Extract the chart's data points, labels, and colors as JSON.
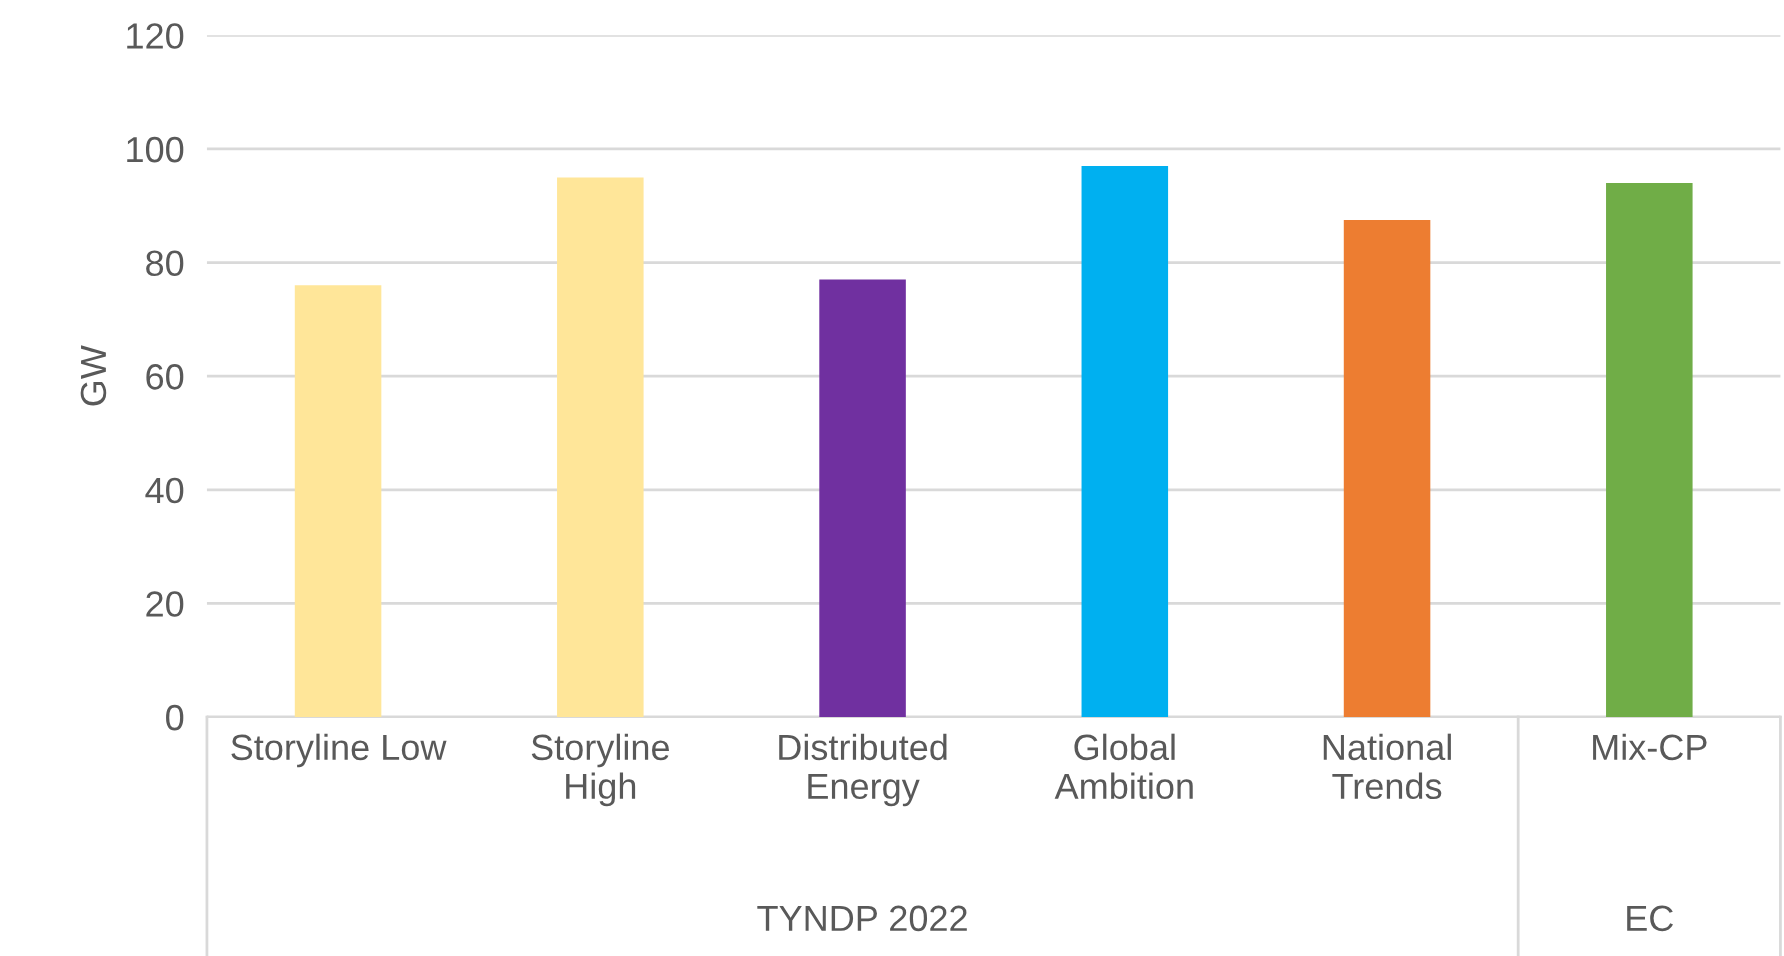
{
  "chart_data": {
    "type": "bar",
    "ylabel": "GW",
    "categories": [
      "Storyline Low",
      "Storyline High",
      "Distributed Energy",
      "Global Ambition",
      "National Trends",
      "Mix-CP"
    ],
    "values": [
      76,
      95,
      77,
      97,
      87.5,
      94
    ],
    "colors": [
      "#ffe699",
      "#ffe699",
      "#7030a0",
      "#00b0f0",
      "#ed7d31",
      "#70ad47"
    ],
    "ylim": [
      0,
      120
    ],
    "yticks": [
      0,
      20,
      40,
      60,
      80,
      100,
      120
    ],
    "grid": "y",
    "annotations": [
      "TYNDP 2022",
      "EC"
    ]
  }
}
